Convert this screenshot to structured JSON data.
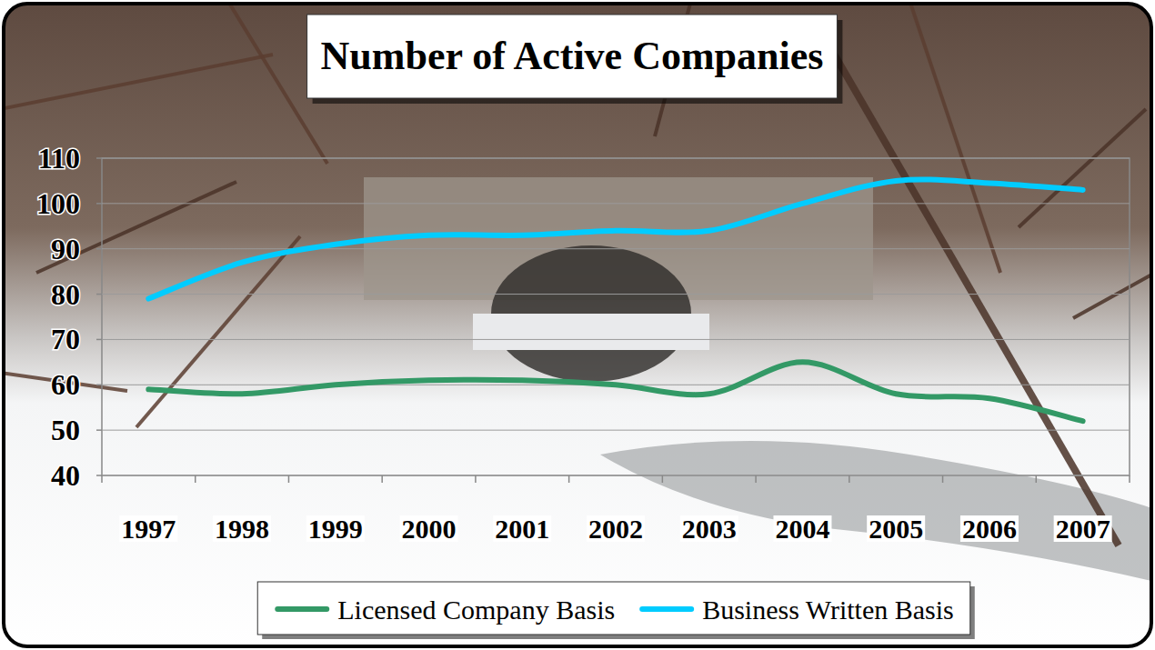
{
  "chart_data": {
    "type": "line",
    "title": "Number of Active Companies",
    "categories": [
      "1997",
      "1998",
      "1999",
      "2000",
      "2001",
      "2002",
      "2003",
      "2004",
      "2005",
      "2006",
      "2007"
    ],
    "series": [
      {
        "name": "Licensed Company Basis",
        "color": "#339966",
        "values": [
          59,
          58,
          60,
          61,
          61,
          60,
          58,
          65,
          58,
          57,
          52
        ]
      },
      {
        "name": "Business Written Basis",
        "color": "#00ccff",
        "values": [
          79,
          87,
          91,
          93,
          93,
          94,
          94,
          100,
          105,
          104.5,
          103
        ]
      }
    ],
    "ylim": [
      40,
      110
    ],
    "yticks": [
      40,
      50,
      60,
      70,
      80,
      90,
      100,
      110
    ],
    "grid": true,
    "legend": "bottom",
    "line_style": "solid"
  }
}
